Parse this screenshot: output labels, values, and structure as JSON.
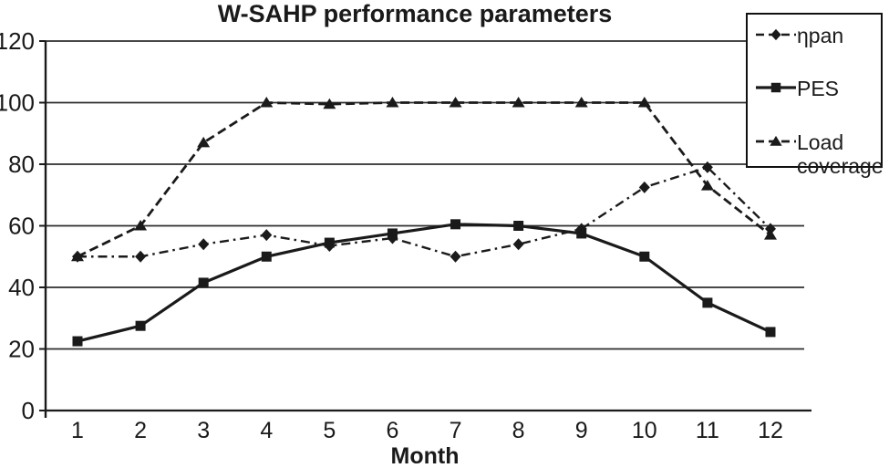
{
  "title": "W-SAHP performance parameters",
  "chart_data": {
    "type": "line",
    "title": "W-SAHP performance parameters",
    "xlabel": "Month",
    "ylabel": "",
    "x": [
      1,
      2,
      3,
      4,
      5,
      6,
      7,
      8,
      9,
      10,
      11,
      12
    ],
    "ylim": [
      0,
      120
    ],
    "yticks": [
      0,
      20,
      40,
      60,
      80,
      100,
      120
    ],
    "grid": true,
    "legend_position": "top-right",
    "series": [
      {
        "name": "ηpan",
        "marker": "diamond",
        "line_style": "dash-dot",
        "values": [
          50,
          50,
          54,
          57,
          53.5,
          56,
          50,
          54,
          59,
          72.5,
          79,
          59
        ]
      },
      {
        "name": "PES",
        "marker": "square",
        "line_style": "solid",
        "values": [
          22.5,
          27.5,
          41.5,
          50,
          54.5,
          57.5,
          60.5,
          60,
          57.5,
          50,
          35,
          25.5
        ]
      },
      {
        "name": "Load coverage",
        "marker": "triangle",
        "line_style": "dashed",
        "values": [
          50,
          60,
          87,
          100,
          99.5,
          100,
          100,
          100,
          100,
          100,
          73,
          57
        ]
      }
    ],
    "colors": {
      "line": "#1a1a1a",
      "grid": "#2e2e2e",
      "background": "#ffffff"
    }
  }
}
